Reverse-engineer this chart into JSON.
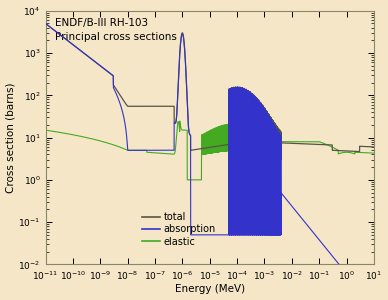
{
  "title_line1": "ENDF/B-III RH-103",
  "title_line2": "Principal cross sections",
  "xlabel": "Energy (MeV)",
  "ylabel": "Cross section (barns)",
  "xlim_log": [
    -11,
    1
  ],
  "ylim_log": [
    -2,
    4
  ],
  "background_color": "#f5e6c8",
  "line_colors": {
    "total": "#555544",
    "absorption": "#3333cc",
    "elastic": "#44aa22"
  },
  "legend_labels": [
    "total",
    "absorption",
    "elastic"
  ],
  "legend_colors": [
    "#555544",
    "#3333cc",
    "#44aa22"
  ]
}
